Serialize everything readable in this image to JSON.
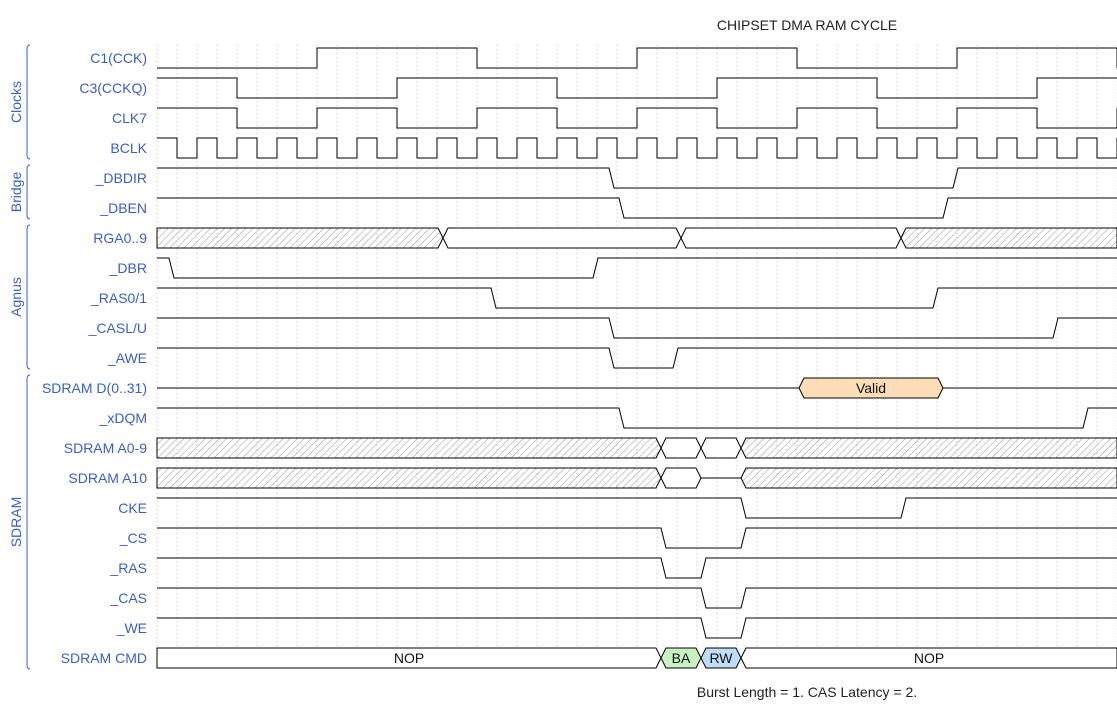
{
  "title": "CHIPSET DMA RAM CYCLE",
  "footnote": "Burst Length = 1. CAS Latency = 2.",
  "colors": {
    "label": "#3a5fc4",
    "wave": "#000000",
    "valid_fill": "#fddcb8",
    "ba_fill": "#c9f2c3",
    "rw_fill": "#bfdcf5",
    "hatch": "#999999"
  },
  "groups": [
    {
      "name": "Clocks",
      "first": 0,
      "last": 3
    },
    {
      "name": "Bridge",
      "first": 4,
      "last": 5
    },
    {
      "name": "Agnus",
      "first": 6,
      "last": 10
    },
    {
      "name": "SDRAM",
      "first": 11,
      "last": 20
    }
  ],
  "signals": [
    {
      "id": "c1",
      "label": "C1(CCK)",
      "type": "clock",
      "period": 16,
      "phase": 8,
      "start_high": false
    },
    {
      "id": "c3",
      "label": "C3(CCKQ)",
      "type": "clock",
      "period": 16,
      "phase": 4,
      "start_high": true
    },
    {
      "id": "clk7",
      "label": "CLK7",
      "type": "clock",
      "period": 8,
      "phase": 4,
      "start_high": true
    },
    {
      "id": "bclk",
      "label": "BCLK",
      "type": "clock",
      "period": 2,
      "phase": 1,
      "start_high": true
    },
    {
      "id": "dbdir",
      "label": "_DBDIR",
      "type": "wave",
      "initial": 1,
      "edges": [
        [
          22.6,
          0
        ],
        [
          39.8,
          1
        ]
      ]
    },
    {
      "id": "dben",
      "label": "_DBEN",
      "type": "wave",
      "initial": 1,
      "edges": [
        [
          23.1,
          0
        ],
        [
          39.3,
          1
        ]
      ]
    },
    {
      "id": "rga",
      "label": "RGA0..9",
      "type": "bus",
      "segments": [
        {
          "from": 0,
          "to": 14.3,
          "kind": "x"
        },
        {
          "from": 14.3,
          "to": 26.2,
          "kind": "d"
        },
        {
          "from": 26.2,
          "to": 37.2,
          "kind": "d"
        },
        {
          "from": 37.2,
          "to": 48,
          "kind": "x"
        }
      ]
    },
    {
      "id": "dbr",
      "label": "_DBR",
      "type": "wave",
      "initial": 1,
      "edges": [
        [
          0.6,
          0
        ],
        [
          21.8,
          1
        ]
      ]
    },
    {
      "id": "ras01",
      "label": "_RAS0/1",
      "type": "wave",
      "initial": 1,
      "edges": [
        [
          16.7,
          0
        ],
        [
          38.8,
          1
        ]
      ]
    },
    {
      "id": "caslu",
      "label": "_CASL/U",
      "type": "wave",
      "initial": 1,
      "edges": [
        [
          22.6,
          0
        ],
        [
          44.8,
          1
        ]
      ]
    },
    {
      "id": "awe",
      "label": "_AWE",
      "type": "wave",
      "initial": 1,
      "edges": [
        [
          22.6,
          0
        ],
        [
          25.8,
          1
        ]
      ]
    },
    {
      "id": "sdram_d",
      "label": "SDRAM D(0..31)",
      "type": "bus",
      "segments": [
        {
          "from": 0,
          "to": 32.1,
          "kind": "z"
        },
        {
          "from": 32.1,
          "to": 39.3,
          "kind": "d",
          "text": "Valid",
          "fill": "#fddcb8"
        },
        {
          "from": 39.3,
          "to": 48,
          "kind": "z"
        }
      ]
    },
    {
      "id": "xdqm",
      "label": "_xDQM",
      "type": "wave",
      "initial": 1,
      "edges": [
        [
          23.1,
          0
        ],
        [
          46.3,
          1
        ]
      ]
    },
    {
      "id": "a09",
      "label": "SDRAM A0-9",
      "type": "bus",
      "segments": [
        {
          "from": 0,
          "to": 25.2,
          "kind": "x"
        },
        {
          "from": 25.2,
          "to": 27.2,
          "kind": "d"
        },
        {
          "from": 27.2,
          "to": 29.2,
          "kind": "d"
        },
        {
          "from": 29.2,
          "to": 48,
          "kind": "x"
        }
      ]
    },
    {
      "id": "a10",
      "label": "SDRAM A10",
      "type": "bus",
      "segments": [
        {
          "from": 0,
          "to": 25.2,
          "kind": "x"
        },
        {
          "from": 25.2,
          "to": 27.2,
          "kind": "d"
        },
        {
          "from": 27.2,
          "to": 29.2,
          "kind": "z"
        },
        {
          "from": 29.2,
          "to": 48,
          "kind": "x"
        }
      ]
    },
    {
      "id": "cke",
      "label": "CKE",
      "type": "wave",
      "initial": 1,
      "edges": [
        [
          29.2,
          0
        ],
        [
          37.2,
          1
        ]
      ]
    },
    {
      "id": "cs",
      "label": "_CS",
      "type": "wave",
      "initial": 1,
      "edges": [
        [
          25.2,
          0
        ],
        [
          29.2,
          1
        ]
      ]
    },
    {
      "id": "ras",
      "label": "_RAS",
      "type": "wave",
      "initial": 1,
      "edges": [
        [
          25.2,
          0
        ],
        [
          27.2,
          1
        ]
      ]
    },
    {
      "id": "cas",
      "label": "_CAS",
      "type": "wave",
      "initial": 1,
      "edges": [
        [
          27.2,
          0
        ],
        [
          29.2,
          1
        ]
      ]
    },
    {
      "id": "we",
      "label": "_WE",
      "type": "wave",
      "initial": 1,
      "edges": [
        [
          27.2,
          0
        ],
        [
          29.2,
          1
        ]
      ]
    },
    {
      "id": "cmd",
      "label": "SDRAM CMD",
      "type": "bus",
      "segments": [
        {
          "from": 0,
          "to": 25.2,
          "kind": "d",
          "text": "NOP"
        },
        {
          "from": 25.2,
          "to": 27.2,
          "kind": "d",
          "text": "BA",
          "fill": "#c9f2c3"
        },
        {
          "from": 27.2,
          "to": 29.2,
          "kind": "d",
          "text": "RW",
          "fill": "#bfdcf5"
        },
        {
          "from": 29.2,
          "to": 48,
          "kind": "d",
          "text": "NOP"
        }
      ]
    }
  ]
}
